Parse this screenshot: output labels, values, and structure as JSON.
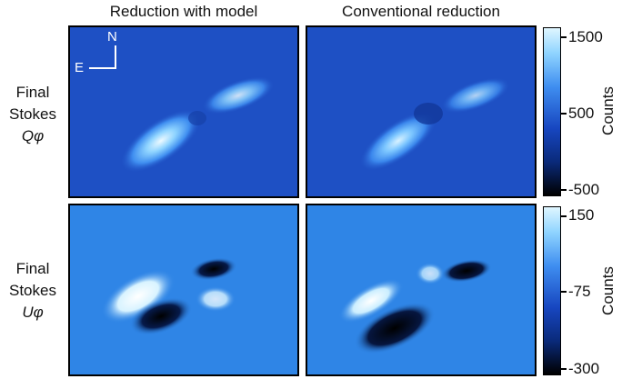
{
  "columns": [
    "Reduction with model",
    "Conventional reduction"
  ],
  "rows": [
    {
      "line1": "Final",
      "line2": "Stokes",
      "symbol": "Q",
      "subscript": "φ"
    },
    {
      "line1": "Final",
      "line2": "Stokes",
      "symbol": "U",
      "subscript": "φ"
    }
  ],
  "compass": {
    "north": "N",
    "east": "E"
  },
  "colorbars": [
    {
      "label": "Counts",
      "ticks": [
        "1500",
        "500",
        "-500"
      ]
    },
    {
      "label": "Counts",
      "ticks": [
        "150",
        "-75",
        "-300"
      ]
    }
  ],
  "colors": {
    "background_q": "#1e50c4",
    "background_u": "#2f85e6",
    "colormap_low": "#000000",
    "colormap_mid": "#1746c0",
    "colormap_high": "#dff6ff"
  }
}
